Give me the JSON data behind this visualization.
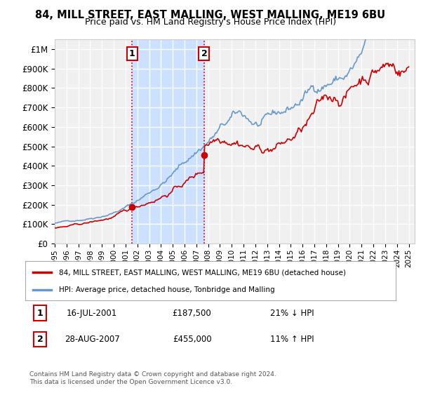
{
  "title": "84, MILL STREET, EAST MALLING, WEST MALLING, ME19 6BU",
  "subtitle": "Price paid vs. HM Land Registry's House Price Index (HPI)",
  "ylabel_ticks": [
    "£0",
    "£100K",
    "£200K",
    "£300K",
    "£400K",
    "£500K",
    "£600K",
    "£700K",
    "£800K",
    "£900K",
    "£1M"
  ],
  "ytick_values": [
    0,
    100000,
    200000,
    300000,
    400000,
    500000,
    600000,
    700000,
    800000,
    900000,
    1000000
  ],
  "ylim": [
    0,
    1050000
  ],
  "xlim_start": 1995.0,
  "xlim_end": 2025.5,
  "background_color": "#ffffff",
  "plot_bg_color": "#f0f0f0",
  "grid_color": "#ffffff",
  "sale1_date": "16-JUL-2001",
  "sale1_price": 187500,
  "sale1_hpi_diff": "21% ↓ HPI",
  "sale1_x": 2001.54,
  "sale2_date": "28-AUG-2007",
  "sale2_price": 455000,
  "sale2_hpi_diff": "11% ↑ HPI",
  "sale2_x": 2007.66,
  "vline_color": "#cc0000",
  "vline_style": ":",
  "highlight_box_color": "#cce0ff",
  "legend_label_red": "84, MILL STREET, EAST MALLING, WEST MALLING, ME19 6BU (detached house)",
  "legend_label_blue": "HPI: Average price, detached house, Tonbridge and Malling",
  "footnote": "Contains HM Land Registry data © Crown copyright and database right 2024.\nThis data is licensed under the Open Government Licence v3.0.",
  "sale_marker_color": "#cc0000",
  "red_line_color": "#cc0000",
  "blue_line_color": "#6699cc"
}
